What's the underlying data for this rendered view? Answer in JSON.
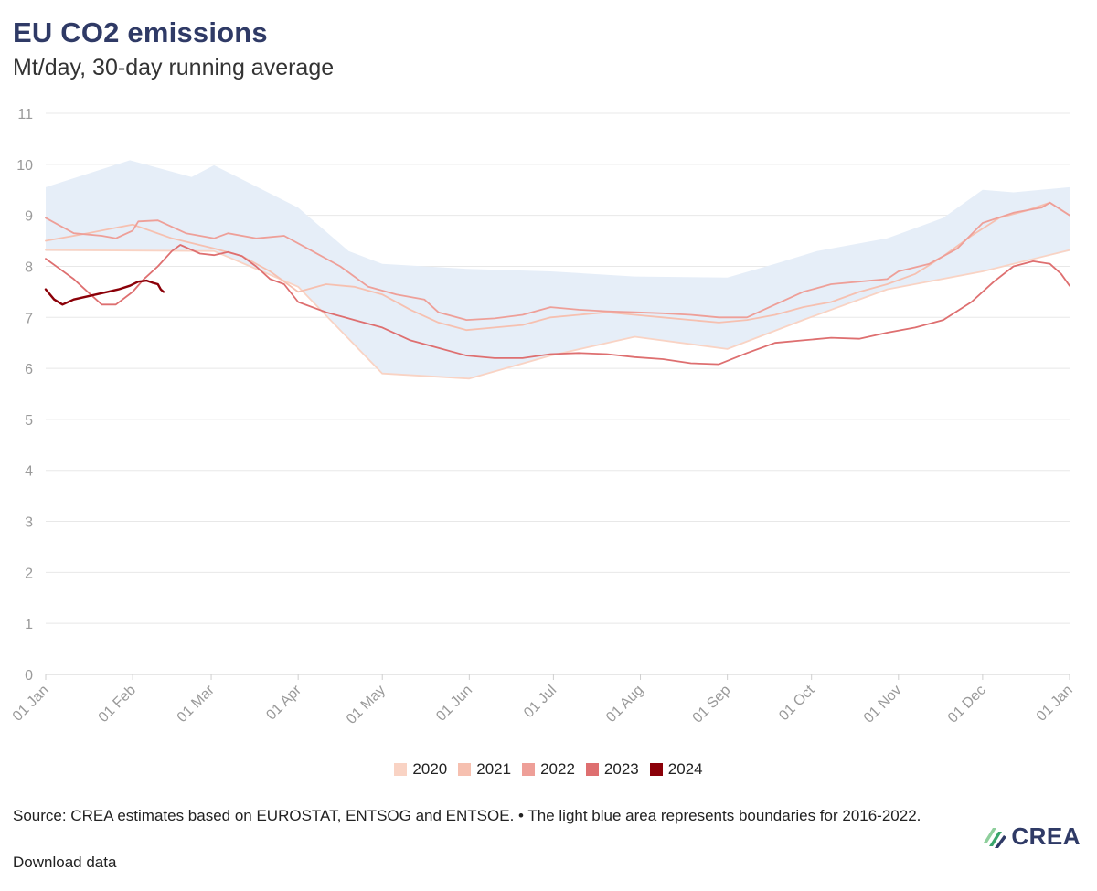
{
  "chart_data": {
    "type": "line",
    "title": "EU CO2 emissions",
    "subtitle": "Mt/day, 30-day running average",
    "xlabel": "",
    "ylabel": "",
    "ylim": [
      0,
      11
    ],
    "yticks": [
      0,
      1,
      2,
      3,
      4,
      5,
      6,
      7,
      8,
      9,
      10,
      11
    ],
    "xticks": [
      "01 Jan",
      "01 Feb",
      "01 Mar",
      "01 Apr",
      "01 May",
      "01 Jun",
      "01 Jul",
      "01 Aug",
      "01 Sep",
      "01 Oct",
      "01 Nov",
      "01 Dec",
      "01 Jan"
    ],
    "xtick_days": [
      0,
      31,
      59,
      90,
      120,
      151,
      181,
      212,
      243,
      273,
      304,
      334,
      365
    ],
    "band": {
      "name": "2016-2022 range",
      "color": "#e6eef8",
      "upper": [
        [
          0,
          9.55
        ],
        [
          30,
          10.08
        ],
        [
          52,
          9.75
        ],
        [
          60,
          9.98
        ],
        [
          90,
          9.15
        ],
        [
          108,
          8.3
        ],
        [
          120,
          8.05
        ],
        [
          150,
          7.95
        ],
        [
          180,
          7.9
        ],
        [
          210,
          7.8
        ],
        [
          243,
          7.78
        ],
        [
          260,
          8.05
        ],
        [
          275,
          8.3
        ],
        [
          300,
          8.55
        ],
        [
          320,
          8.95
        ],
        [
          334,
          9.5
        ],
        [
          345,
          9.45
        ],
        [
          365,
          9.55
        ]
      ],
      "lower": [
        [
          0,
          8.3
        ],
        [
          60,
          8.3
        ],
        [
          90,
          7.6
        ],
        [
          120,
          5.9
        ],
        [
          151,
          5.8
        ],
        [
          180,
          6.25
        ],
        [
          210,
          6.62
        ],
        [
          243,
          6.38
        ],
        [
          270,
          6.95
        ],
        [
          300,
          7.55
        ],
        [
          334,
          7.9
        ],
        [
          365,
          8.3
        ]
      ]
    },
    "series": [
      {
        "name": "2020",
        "color": "#f9d3c4",
        "values": [
          [
            0,
            8.32
          ],
          [
            60,
            8.3
          ],
          [
            90,
            7.6
          ],
          [
            120,
            5.9
          ],
          [
            151,
            5.8
          ],
          [
            180,
            6.25
          ],
          [
            210,
            6.62
          ],
          [
            243,
            6.38
          ],
          [
            270,
            6.95
          ],
          [
            300,
            7.55
          ],
          [
            334,
            7.9
          ],
          [
            365,
            8.32
          ]
        ]
      },
      {
        "name": "2021",
        "color": "#f6c0b0",
        "values": [
          [
            0,
            8.5
          ],
          [
            15,
            8.65
          ],
          [
            31,
            8.82
          ],
          [
            45,
            8.55
          ],
          [
            60,
            8.35
          ],
          [
            70,
            8.2
          ],
          [
            80,
            7.9
          ],
          [
            90,
            7.5
          ],
          [
            100,
            7.65
          ],
          [
            110,
            7.6
          ],
          [
            120,
            7.45
          ],
          [
            130,
            7.15
          ],
          [
            140,
            6.9
          ],
          [
            150,
            6.75
          ],
          [
            160,
            6.8
          ],
          [
            170,
            6.85
          ],
          [
            180,
            7.0
          ],
          [
            190,
            7.05
          ],
          [
            200,
            7.1
          ],
          [
            210,
            7.05
          ],
          [
            220,
            7.0
          ],
          [
            230,
            6.95
          ],
          [
            240,
            6.9
          ],
          [
            250,
            6.95
          ],
          [
            260,
            7.05
          ],
          [
            270,
            7.2
          ],
          [
            280,
            7.3
          ],
          [
            290,
            7.5
          ],
          [
            300,
            7.65
          ],
          [
            310,
            7.85
          ],
          [
            320,
            8.2
          ],
          [
            330,
            8.6
          ],
          [
            340,
            8.95
          ],
          [
            350,
            9.1
          ],
          [
            358,
            9.25
          ],
          [
            365,
            9.0
          ]
        ]
      },
      {
        "name": "2022",
        "color": "#ee9f98",
        "values": [
          [
            0,
            8.95
          ],
          [
            5,
            8.8
          ],
          [
            10,
            8.65
          ],
          [
            20,
            8.6
          ],
          [
            25,
            8.55
          ],
          [
            31,
            8.7
          ],
          [
            33,
            8.88
          ],
          [
            40,
            8.9
          ],
          [
            50,
            8.65
          ],
          [
            60,
            8.55
          ],
          [
            65,
            8.65
          ],
          [
            75,
            8.55
          ],
          [
            85,
            8.6
          ],
          [
            95,
            8.3
          ],
          [
            105,
            8.0
          ],
          [
            115,
            7.6
          ],
          [
            125,
            7.45
          ],
          [
            135,
            7.35
          ],
          [
            140,
            7.1
          ],
          [
            150,
            6.95
          ],
          [
            160,
            6.98
          ],
          [
            170,
            7.05
          ],
          [
            180,
            7.2
          ],
          [
            190,
            7.15
          ],
          [
            200,
            7.12
          ],
          [
            210,
            7.1
          ],
          [
            220,
            7.08
          ],
          [
            230,
            7.05
          ],
          [
            240,
            7.0
          ],
          [
            250,
            7.0
          ],
          [
            260,
            7.25
          ],
          [
            270,
            7.5
          ],
          [
            280,
            7.65
          ],
          [
            290,
            7.7
          ],
          [
            300,
            7.75
          ],
          [
            304,
            7.9
          ],
          [
            315,
            8.05
          ],
          [
            325,
            8.35
          ],
          [
            334,
            8.85
          ],
          [
            345,
            9.05
          ],
          [
            355,
            9.15
          ],
          [
            358,
            9.25
          ],
          [
            365,
            9.0
          ]
        ]
      },
      {
        "name": "2023",
        "color": "#de6f70",
        "values": [
          [
            0,
            8.15
          ],
          [
            5,
            7.95
          ],
          [
            10,
            7.75
          ],
          [
            15,
            7.5
          ],
          [
            20,
            7.25
          ],
          [
            25,
            7.25
          ],
          [
            31,
            7.5
          ],
          [
            35,
            7.75
          ],
          [
            40,
            8.0
          ],
          [
            45,
            8.3
          ],
          [
            48,
            8.42
          ],
          [
            55,
            8.25
          ],
          [
            60,
            8.22
          ],
          [
            65,
            8.28
          ],
          [
            70,
            8.2
          ],
          [
            75,
            8.0
          ],
          [
            80,
            7.75
          ],
          [
            85,
            7.65
          ],
          [
            90,
            7.3
          ],
          [
            100,
            7.1
          ],
          [
            110,
            6.95
          ],
          [
            120,
            6.8
          ],
          [
            130,
            6.55
          ],
          [
            140,
            6.4
          ],
          [
            150,
            6.25
          ],
          [
            160,
            6.2
          ],
          [
            170,
            6.2
          ],
          [
            180,
            6.28
          ],
          [
            190,
            6.3
          ],
          [
            200,
            6.28
          ],
          [
            210,
            6.22
          ],
          [
            220,
            6.18
          ],
          [
            230,
            6.1
          ],
          [
            240,
            6.08
          ],
          [
            250,
            6.3
          ],
          [
            260,
            6.5
          ],
          [
            270,
            6.55
          ],
          [
            280,
            6.6
          ],
          [
            290,
            6.58
          ],
          [
            300,
            6.7
          ],
          [
            310,
            6.8
          ],
          [
            320,
            6.95
          ],
          [
            330,
            7.3
          ],
          [
            338,
            7.7
          ],
          [
            345,
            8.0
          ],
          [
            352,
            8.1
          ],
          [
            358,
            8.05
          ],
          [
            362,
            7.85
          ],
          [
            365,
            7.62
          ]
        ]
      },
      {
        "name": "2024",
        "color": "#8b0008",
        "values": [
          [
            0,
            7.55
          ],
          [
            3,
            7.35
          ],
          [
            6,
            7.25
          ],
          [
            10,
            7.35
          ],
          [
            14,
            7.4
          ],
          [
            18,
            7.45
          ],
          [
            22,
            7.5
          ],
          [
            26,
            7.55
          ],
          [
            30,
            7.62
          ],
          [
            33,
            7.7
          ],
          [
            36,
            7.72
          ],
          [
            38,
            7.68
          ],
          [
            40,
            7.65
          ],
          [
            41,
            7.55
          ],
          [
            42,
            7.5
          ]
        ]
      }
    ]
  },
  "footer": {
    "source": "Source: CREA estimates based on EUROSTAT, ENTSOG and ENTSOE. • The light blue area represents boundaries for 2016-2022.",
    "download": "Download data"
  },
  "logo": {
    "text": "CREA",
    "colors": [
      "#2f3a66",
      "#3aa56b",
      "#8fcf9c"
    ]
  }
}
